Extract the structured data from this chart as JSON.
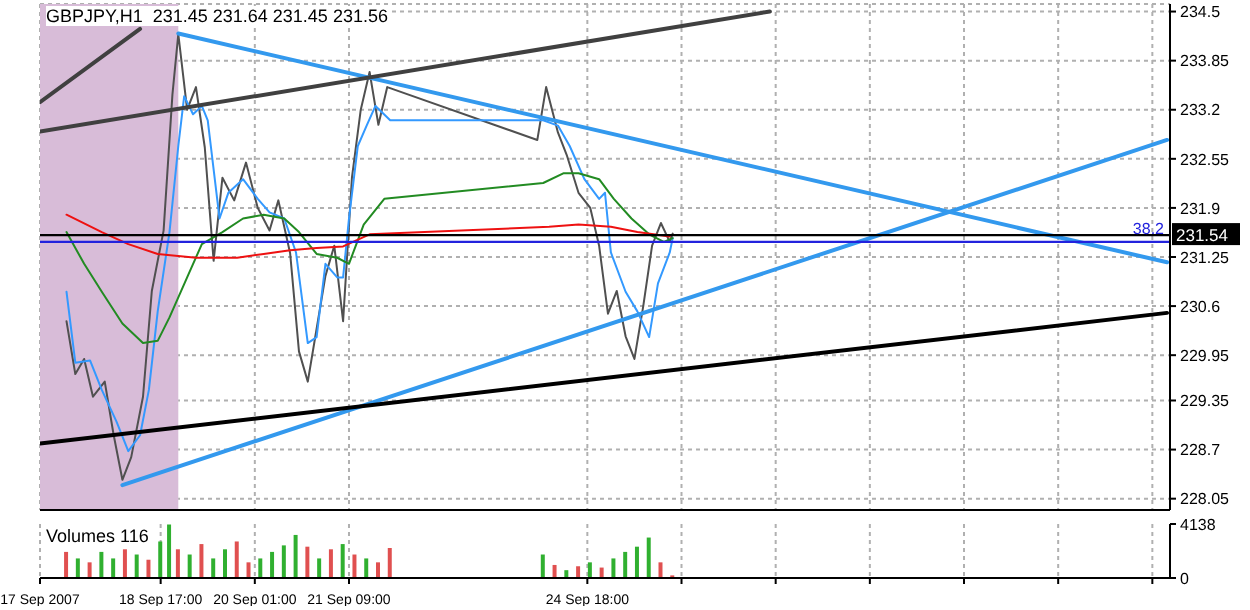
{
  "chart_data": [
    {
      "type": "line",
      "title": "GBPJPY,H1  231.45 231.64 231.45 231.56",
      "xlim": [
        "2007-09-17T00:00",
        "2007-10-03T00:00"
      ],
      "xticks": [
        {
          "value": "2007-09-17",
          "label": null
        },
        {
          "value": "2007-09-18T17:00",
          "label": null
        },
        {
          "value": "2007-09-20T01:00",
          "label": null
        },
        {
          "value": "2007-09-21T09:00",
          "label": null
        },
        {
          "value": "2007-09-24T18:00",
          "label": null
        },
        {
          "value": "2007-09-26T02:00",
          "label": null
        },
        {
          "value": "2007-09-27T10:00",
          "label": null
        },
        {
          "value": "2007-09-28T18:00",
          "label": null
        },
        {
          "value": "2007-09-30T02:00",
          "label": null
        },
        {
          "value": "2007-10-01T10:00",
          "label": null
        },
        {
          "value": "2007-10-02T18:00",
          "label": null
        }
      ],
      "ylim": [
        227.9,
        234.6
      ],
      "yticks": [
        228.05,
        228.7,
        229.35,
        229.95,
        230.6,
        231.25,
        231.9,
        232.55,
        233.2,
        233.85,
        234.5
      ],
      "tick_labels": "y",
      "grid": true,
      "marker": "none",
      "series": [
        {
          "color": "#505050",
          "x": [
            "2007-09-17T09:00",
            "2007-09-17T12:00",
            "2007-09-17T15:00",
            "2007-09-17T18:00",
            "2007-09-17T22:00",
            "2007-09-18T01:00",
            "2007-09-18T04:00",
            "2007-09-18T07:00",
            "2007-09-18T11:00",
            "2007-09-18T14:00",
            "2007-09-18T18:00",
            "2007-09-18T21:00",
            "2007-09-18T23:00",
            "2007-09-19T02:00",
            "2007-09-19T05:00",
            "2007-09-19T08:00",
            "2007-09-19T11:00",
            "2007-09-19T14:00",
            "2007-09-19T18:00",
            "2007-09-19T22:00",
            "2007-09-20T02:00",
            "2007-09-20T06:00",
            "2007-09-20T09:00",
            "2007-09-20T13:00",
            "2007-09-20T16:00",
            "2007-09-20T19:00",
            "2007-09-20T22:00",
            "2007-09-21T01:00",
            "2007-09-21T04:00",
            "2007-09-21T07:00",
            "2007-09-21T10:00",
            "2007-09-21T13:00",
            "2007-09-21T16:00",
            "2007-09-21T19:00",
            "2007-09-21T22:00",
            "2007-09-24T01:00",
            "2007-09-24T04:00",
            "2007-09-24T08:00",
            "2007-09-24T11:00",
            "2007-09-24T15:00",
            "2007-09-24T19:00",
            "2007-09-24T22:00",
            "2007-09-25T01:00",
            "2007-09-25T04:00",
            "2007-09-25T07:00",
            "2007-09-25T10:00",
            "2007-09-25T13:00",
            "2007-09-25T16:00",
            "2007-09-25T19:00",
            "2007-09-25T22:00",
            "2007-09-25T23:00"
          ],
          "values": [
            230.4,
            229.7,
            229.9,
            229.4,
            229.6,
            228.9,
            228.3,
            228.6,
            229.4,
            230.8,
            231.6,
            233.4,
            234.2,
            233.2,
            233.5,
            232.7,
            231.2,
            232.3,
            232.0,
            232.5,
            231.9,
            231.6,
            232.0,
            231.3,
            230.0,
            229.6,
            230.3,
            231.0,
            231.4,
            230.4,
            232.3,
            233.2,
            233.7,
            233.0,
            233.5,
            232.8,
            233.5,
            232.9,
            232.6,
            232.1,
            231.9,
            231.4,
            230.5,
            230.8,
            230.2,
            229.9,
            230.6,
            231.4,
            231.7,
            231.45,
            231.56
          ]
        },
        {
          "color": "#3399ff",
          "x": [
            "2007-09-17T09:00",
            "2007-09-17T12:00",
            "2007-09-17T17:00",
            "2007-09-17T21:00",
            "2007-09-18T02:00",
            "2007-09-18T06:00",
            "2007-09-18T10:00",
            "2007-09-18T13:00",
            "2007-09-18T16:00",
            "2007-09-18T20:00",
            "2007-09-18T23:00",
            "2007-09-19T01:00",
            "2007-09-19T04:00",
            "2007-09-19T07:00",
            "2007-09-19T09:00",
            "2007-09-19T13:00",
            "2007-09-19T16:00",
            "2007-09-19T21:00",
            "2007-09-20T02:00",
            "2007-09-20T06:00",
            "2007-09-20T11:00",
            "2007-09-20T15:00",
            "2007-09-20T19:00",
            "2007-09-20T22:00",
            "2007-09-21T01:00",
            "2007-09-21T05:00",
            "2007-09-21T07:00",
            "2007-09-21T09:00",
            "2007-09-21T12:00",
            "2007-09-21T15:00",
            "2007-09-21T18:00",
            "2007-09-21T23:00",
            "2007-09-24T03:00",
            "2007-09-24T08:00",
            "2007-09-24T12:00",
            "2007-09-24T17:00",
            "2007-09-24T22:00",
            "2007-09-25T00:00",
            "2007-09-25T02:00",
            "2007-09-25T07:00",
            "2007-09-25T11:00",
            "2007-09-25T15:00",
            "2007-09-25T18:00",
            "2007-09-25T22:00",
            "2007-09-25T23:00"
          ],
          "values": [
            230.79,
            229.85,
            229.88,
            229.49,
            229.07,
            228.68,
            228.89,
            229.49,
            230.53,
            231.58,
            232.72,
            233.38,
            233.14,
            233.25,
            233.06,
            231.76,
            232.1,
            232.28,
            232.02,
            231.84,
            231.76,
            231.31,
            230.11,
            230.19,
            231.16,
            230.98,
            230.98,
            231.76,
            232.72,
            232.99,
            233.25,
            233.06,
            233.06,
            232.99,
            232.72,
            232.28,
            232.02,
            232.1,
            231.31,
            230.79,
            230.53,
            230.19,
            230.9,
            231.31,
            231.5
          ]
        },
        {
          "color": "#228b22",
          "x": [
            "2007-09-17T09:00",
            "2007-09-17T15:00",
            "2007-09-17T21:00",
            "2007-09-18T04:00",
            "2007-09-18T11:00",
            "2007-09-18T16:00",
            "2007-09-18T20:00",
            "2007-09-19T02:00",
            "2007-09-19T07:00",
            "2007-09-19T14:00",
            "2007-09-19T21:00",
            "2007-09-20T04:00",
            "2007-09-20T11:00",
            "2007-09-20T16:00",
            "2007-09-20T22:00",
            "2007-09-21T05:00",
            "2007-09-21T09:00",
            "2007-09-21T14:00",
            "2007-09-21T21:00",
            "2007-09-24T03:00",
            "2007-09-24T10:00",
            "2007-09-24T15:00",
            "2007-09-24T22:00",
            "2007-09-25T03:00",
            "2007-09-25T09:00",
            "2007-09-25T15:00",
            "2007-09-25T20:00",
            "2007-09-25T23:00"
          ],
          "values": [
            231.58,
            231.16,
            230.79,
            230.37,
            230.11,
            230.14,
            230.45,
            230.98,
            231.42,
            231.58,
            231.76,
            231.81,
            231.76,
            231.58,
            231.29,
            231.24,
            231.16,
            231.68,
            232.02,
            232.23,
            232.36,
            232.36,
            232.28,
            232.02,
            231.76,
            231.55,
            231.45,
            231.5
          ]
        },
        {
          "color": "#ee1111",
          "x": [
            "2007-09-17T09:00",
            "2007-09-17T21:00",
            "2007-09-18T06:00",
            "2007-09-18T16:00",
            "2007-09-19T05:00",
            "2007-09-19T19:00",
            "2007-09-20T04:00",
            "2007-09-20T13:00",
            "2007-09-20T22:00",
            "2007-09-21T07:00",
            "2007-09-21T16:00",
            "2007-09-24T05:00",
            "2007-09-24T15:00",
            "2007-09-25T02:00",
            "2007-09-25T11:00",
            "2007-09-25T22:00"
          ],
          "values": [
            231.81,
            231.58,
            231.42,
            231.29,
            231.24,
            231.24,
            231.29,
            231.34,
            231.37,
            231.39,
            231.55,
            231.65,
            231.68,
            231.65,
            231.58,
            231.52
          ]
        },
        {
          "color": "#3399ee",
          "x": [
            "2007-09-18T23:00",
            "2007-10-02T23:00"
          ],
          "values": [
            234.21,
            231.18
          ]
        },
        {
          "color": "#3399ee",
          "x": [
            "2007-09-18T04:00",
            "2007-10-02T23:00"
          ],
          "values": [
            228.23,
            232.8
          ]
        },
        {
          "color": "#000000",
          "x": [
            "2007-09-17T00:00",
            "2007-10-02T23:00"
          ],
          "values": [
            228.78,
            230.51
          ]
        },
        {
          "color": "#404040",
          "x": [
            "2007-09-17T00:00",
            "2007-09-27T08:00"
          ],
          "values": [
            232.91,
            234.5
          ]
        },
        {
          "color": "#404040",
          "x": [
            "2007-09-17T00:00",
            "2007-09-18T10:00"
          ],
          "values": [
            233.3,
            234.27
          ]
        }
      ],
      "bands": [
        {
          "axis": "x",
          "from": "2007-09-17T00:00",
          "to": "2007-09-18T23:00",
          "color": "#d8bcd8"
        }
      ],
      "ref_lines": [
        {
          "axis": "y",
          "value": 231.54,
          "label": "231.54",
          "color": "#000000"
        },
        {
          "axis": "y",
          "value": 231.45,
          "color": "#2222dd"
        }
      ],
      "annotations": [
        "38.2"
      ]
    },
    {
      "type": "bar",
      "title": "Volumes 116",
      "xlim": [
        "2007-09-17T00:00",
        "2007-10-03T00:00"
      ],
      "xticks": [
        {
          "value": "2007-09-17",
          "label": "17 Sep 2007"
        },
        {
          "value": "2007-09-18T17:00",
          "label": "18 Sep 17:00"
        },
        {
          "value": "2007-09-20T01:00",
          "label": "20 Sep 01:00"
        },
        {
          "value": "2007-09-21T09:00",
          "label": "21 Sep 09:00"
        },
        {
          "value": "2007-09-24T18:00",
          "label": "24 Sep 18:00"
        },
        {
          "value": "2007-09-26T02:00",
          "label": null
        },
        {
          "value": "2007-09-27T10:00",
          "label": null
        },
        {
          "value": "2007-09-28T18:00",
          "label": null
        },
        {
          "value": "2007-09-30T02:00",
          "label": null
        },
        {
          "value": "2007-10-01T10:00",
          "label": null
        },
        {
          "value": "2007-10-02T18:00",
          "label": null
        }
      ],
      "ylim": [
        0,
        4138
      ],
      "yticks": [
        0,
        4138
      ],
      "grid": "x",
      "x": [
        "2007-09-17T09:00",
        "2007-09-17T13:00",
        "2007-09-17T17:00",
        "2007-09-17T21:00",
        "2007-09-18T01:00",
        "2007-09-18T05:00",
        "2007-09-18T09:00",
        "2007-09-18T13:00",
        "2007-09-18T17:00",
        "2007-09-18T20:00",
        "2007-09-18T23:00",
        "2007-09-19T03:00",
        "2007-09-19T07:00",
        "2007-09-19T11:00",
        "2007-09-19T15:00",
        "2007-09-19T19:00",
        "2007-09-19T23:00",
        "2007-09-20T03:00",
        "2007-09-20T07:00",
        "2007-09-20T11:00",
        "2007-09-20T15:00",
        "2007-09-20T19:00",
        "2007-09-20T23:00",
        "2007-09-21T03:00",
        "2007-09-21T07:00",
        "2007-09-21T11:00",
        "2007-09-21T15:00",
        "2007-09-21T19:00",
        "2007-09-21T23:00",
        "2007-09-24T03:00",
        "2007-09-24T07:00",
        "2007-09-24T11:00",
        "2007-09-24T15:00",
        "2007-09-24T19:00",
        "2007-09-24T23:00",
        "2007-09-25T03:00",
        "2007-09-25T07:00",
        "2007-09-25T11:00",
        "2007-09-25T15:00",
        "2007-09-25T19:00",
        "2007-09-25T23:00"
      ],
      "values": [
        2000,
        1500,
        1200,
        2000,
        1500,
        2200,
        1800,
        1400,
        2800,
        4100,
        2200,
        1800,
        2600,
        1500,
        2200,
        2800,
        1200,
        1500,
        2000,
        2500,
        3300,
        2400,
        1500,
        2200,
        2600,
        1800,
        1500,
        1200,
        2300,
        1800,
        1000,
        600,
        900,
        1200,
        800,
        1500,
        2000,
        2400,
        3100,
        1200,
        200
      ],
      "colors": [
        "#e05050",
        "#30b030",
        "#e05050",
        "#30b030",
        "#30b030",
        "#e05050",
        "#30b030",
        "#e05050",
        "#30b030",
        "#30b030",
        "#e05050",
        "#30b030",
        "#e05050",
        "#30b030",
        "#30b030",
        "#e05050",
        "#e05050",
        "#30b030",
        "#30b030",
        "#30b030",
        "#30b030",
        "#e05050",
        "#30b030",
        "#e05050",
        "#30b030",
        "#e05050",
        "#30b030",
        "#e05050",
        "#e05050",
        "#30b030",
        "#e05050",
        "#30b030",
        "#e05050",
        "#30b030",
        "#e05050",
        "#30b030",
        "#30b030",
        "#30b030",
        "#30b030",
        "#e05050",
        "#e05050"
      ]
    }
  ]
}
